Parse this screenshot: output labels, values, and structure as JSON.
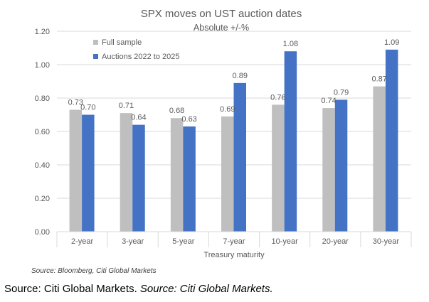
{
  "chart_data": {
    "type": "bar",
    "title": "SPX moves on UST auction dates",
    "subtitle": "Absolute +/-%",
    "xlabel": "Treasury maturity",
    "ylabel": "",
    "categories": [
      "2-year",
      "3-year",
      "5-year",
      "7-year",
      "10-year",
      "20-year",
      "30-year"
    ],
    "series": [
      {
        "name": "Full sample",
        "color": "#bfbfbf",
        "values": [
          0.73,
          0.71,
          0.68,
          0.69,
          0.76,
          0.74,
          0.87
        ]
      },
      {
        "name": "Auctions 2022 to 2025",
        "color": "#4472c4",
        "values": [
          0.7,
          0.64,
          0.63,
          0.89,
          1.08,
          0.79,
          1.09
        ]
      }
    ],
    "data_labels": [
      [
        "0.73",
        "0.71",
        "0.68",
        "0.69",
        "0.76",
        "0.74",
        "0.87"
      ],
      [
        "0.70",
        "0.64",
        "0.63",
        "0.89",
        "1.08",
        "0.79",
        "1.09"
      ]
    ],
    "yticks": [
      "0.00",
      "0.20",
      "0.40",
      "0.60",
      "0.80",
      "1.00",
      "1.20"
    ],
    "ylim": [
      0,
      1.2
    ],
    "grid": true,
    "legend_placement": "top-left"
  },
  "chart_source": "Source: Bloomberg, Citi Global Markets",
  "footer": {
    "source_plain": "Source: Citi Global Markets.",
    "source_italic": "Source: Citi Global Markets."
  }
}
